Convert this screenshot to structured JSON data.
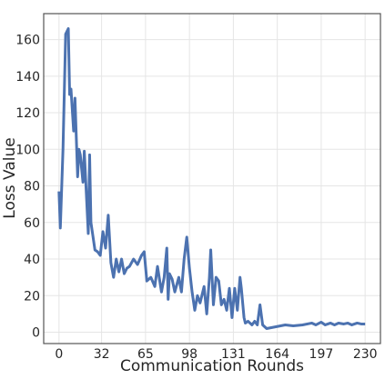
{
  "chart_data": {
    "type": "line",
    "xlabel": "Communication Rounds",
    "ylabel": "Loss Value",
    "x": [
      0,
      1,
      3,
      5,
      7,
      8,
      9,
      11,
      12,
      14,
      15,
      16,
      18,
      19,
      22,
      23,
      24,
      26,
      27,
      29,
      31,
      33,
      35,
      37,
      39,
      41,
      43,
      45,
      47,
      49,
      51,
      53,
      56,
      59,
      62,
      64,
      66,
      69,
      72,
      74,
      77,
      79,
      81,
      82,
      83,
      85,
      87,
      90,
      92,
      94,
      96,
      98,
      100,
      102,
      104,
      106,
      109,
      111,
      113,
      114,
      116,
      118,
      120,
      122,
      124,
      126,
      128,
      130,
      132,
      134,
      136,
      137,
      139,
      140,
      142,
      145,
      147,
      149,
      151,
      153,
      156,
      163,
      170,
      176,
      183,
      190,
      193,
      197,
      200,
      204,
      207,
      210,
      214,
      217,
      220,
      224,
      227,
      230
    ],
    "series": [
      {
        "name": "Loss",
        "color": "#4c72b0",
        "values": [
          77,
          57,
          100,
          163,
          166,
          130,
          133,
          110,
          128,
          85,
          100,
          97,
          82,
          99,
          54,
          97,
          60,
          50,
          45,
          44,
          42,
          55,
          46,
          64,
          38,
          30,
          40,
          33,
          40,
          32,
          35,
          36,
          40,
          37,
          42,
          44,
          28,
          30,
          25,
          36,
          22,
          30,
          46,
          18,
          32,
          29,
          22,
          30,
          22,
          40,
          52,
          35,
          22,
          12,
          20,
          16,
          25,
          10,
          30,
          45,
          15,
          30,
          28,
          15,
          18,
          12,
          24,
          8,
          24,
          12,
          30,
          24,
          8,
          5,
          6,
          4,
          6,
          4,
          15,
          4,
          2,
          3,
          4,
          3.5,
          4,
          5,
          4,
          5.5,
          4,
          5,
          4,
          5,
          4.5,
          5,
          4,
          5,
          4.5,
          4.5
        ]
      }
    ],
    "xlim": [
      -11.5,
      241.5
    ],
    "ylim": [
      -6.2,
      174.2
    ],
    "xticks": [
      0,
      32,
      65,
      98,
      131,
      164,
      197,
      230
    ],
    "yticks": [
      0,
      20,
      40,
      60,
      80,
      100,
      120,
      140,
      160
    ],
    "grid": true
  }
}
